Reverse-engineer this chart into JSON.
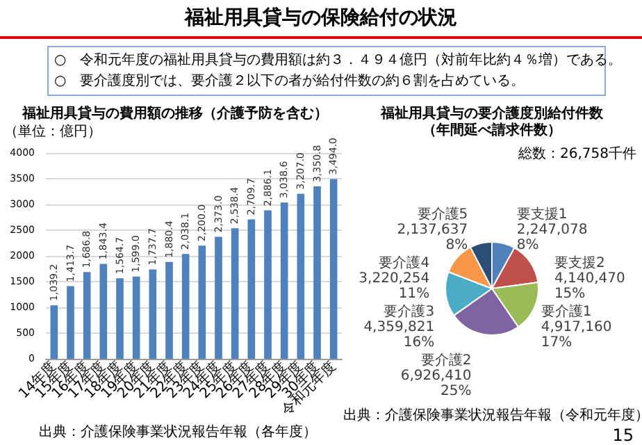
{
  "chart_data": [
    {
      "type": "other",
      "title": "福祉用具貸与の保険給付の状況",
      "annotations": [
        "○　令和元年度の福祉用具貸与の費用額は約３．４９４億円（対前年比約４％増）である。",
        "○　要介護度別では、要介護２以下の者が給付件数の約６割を占めている。"
      ]
    },
    {
      "type": "bar",
      "title": "福祉用具貸与の費用額の推移（介護予防を含む）",
      "ylabel": "（単位：億円）",
      "categories": [
        "14年度",
        "15年度",
        "16年度",
        "17年度",
        "18年度",
        "19年度",
        "20年度",
        "21年度",
        "22年度",
        "23年度",
        "24年度",
        "25年度",
        "26年度",
        "27年度",
        "28年度",
        "29年度",
        "30年度",
        "令和元年度"
      ],
      "values": [
        1039.2,
        1413.7,
        1686.8,
        1843.4,
        1564.7,
        1599.0,
        1737.7,
        1880.4,
        2038.1,
        2200.0,
        2373.0,
        2538.4,
        2709.7,
        2886.1,
        3038.6,
        3207.0,
        3350.8,
        3494.0
      ],
      "value_labels": [
        "1,039.2",
        "1,413.7",
        "1,686.8",
        "1,843.4",
        "1,564.7",
        "1,599.0",
        "1,737.7",
        "1,880.4",
        "2,038.1",
        "2,200.0",
        "2,373.0",
        "2,538.4",
        "2,709.7",
        "2,886.1",
        "3,038.6",
        "3,207.0",
        "3,350.8",
        "3,494.0"
      ],
      "color": "#4f81bd",
      "ylim": [
        0,
        4000
      ],
      "yticks": [
        0,
        500,
        1000,
        1500,
        2000,
        2500,
        3000,
        3500,
        4000
      ],
      "grid": "y",
      "annotations": [
        "出典：介護保険事業状況報告年報（各年度）"
      ]
    },
    {
      "type": "pie",
      "title": "福祉用具貸与の要介護度別給付件数",
      "subtitle": "（年間延べ請求件数）",
      "categories": [
        "要支援1",
        "要支援2",
        "要介護1",
        "要介護2",
        "要介護3",
        "要介護4",
        "要介護5"
      ],
      "values": [
        2247078,
        4140470,
        4917160,
        6926410,
        4359821,
        3220254,
        2137637
      ],
      "value_labels": [
        "2,247,078\n8%",
        "4,140,470\n15%",
        "4,917,160\n17%",
        "6,926,410\n25%",
        "4,359,821\n16%",
        "3,220,254\n11%",
        "2,137,637\n8%"
      ],
      "colors": [
        "#4f81bd",
        "#c0504d",
        "#9bbb59",
        "#8064a2",
        "#4bacc6",
        "#f79646",
        "#2c4d75"
      ],
      "annotations": [
        "総数：26,758千件",
        "出典：介護保険事業状況報告年報（令和元年度）",
        "15"
      ]
    }
  ]
}
